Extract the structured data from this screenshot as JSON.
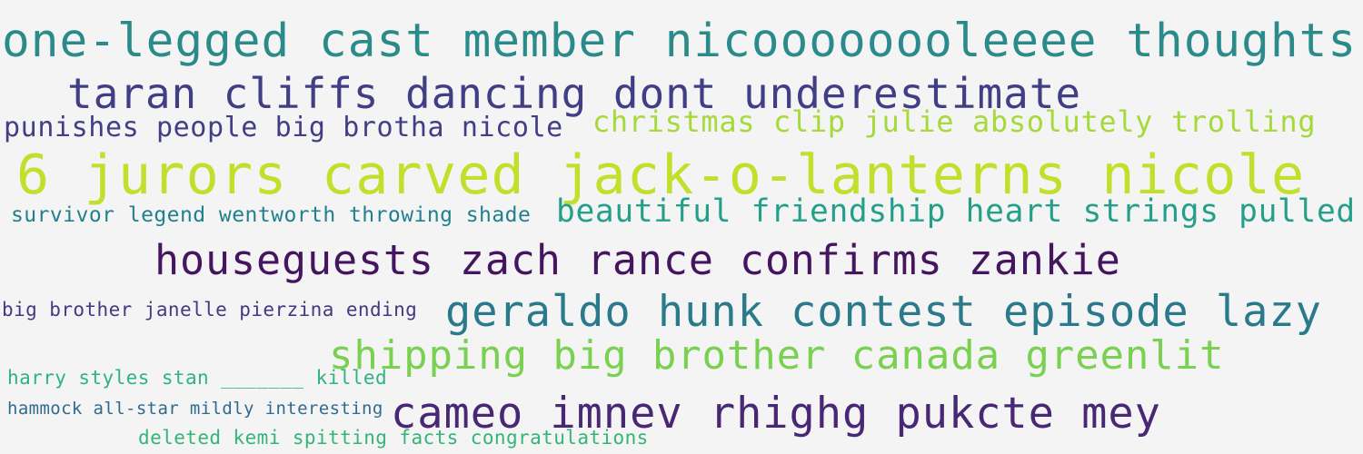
{
  "phrases": [
    {
      "text": "one-legged cast member nicoooooooleeee thoughts",
      "color": "#2a8b8a"
    },
    {
      "text": "taran cliffs dancing dont underestimate",
      "color": "#413e86"
    },
    {
      "text": "punishes people big brotha nicole",
      "color": "#413e86"
    },
    {
      "text": "christmas clip julie absolutely trolling",
      "color": "#a6d93a"
    },
    {
      "text": "6 jurors carved jack-o-lanterns nicole",
      "color": "#c0e02c"
    },
    {
      "text": "survivor legend wentworth throwing shade",
      "color": "#21808c"
    },
    {
      "text": "beautiful friendship heart strings pulled",
      "color": "#24a08a"
    },
    {
      "text": "houseguests zach rance confirms zankie",
      "color": "#46155f"
    },
    {
      "text": "big brother janelle pierzina ending",
      "color": "#433a80"
    },
    {
      "text": "geraldo hunk contest episode lazy",
      "color": "#2a7a8c"
    },
    {
      "text": "shipping big brother canada greenlit",
      "color": "#7ad151"
    },
    {
      "text": "harry styles stan _______ killed",
      "color": "#2fb380"
    },
    {
      "text": "hammock all-star mildly interesting",
      "color": "#2f6b8e"
    },
    {
      "text": "cameo imnev rhighg pukcte mey",
      "color": "#482774"
    },
    {
      "text": "deleted kemi spitting facts congratulations",
      "color": "#33b57a"
    }
  ]
}
